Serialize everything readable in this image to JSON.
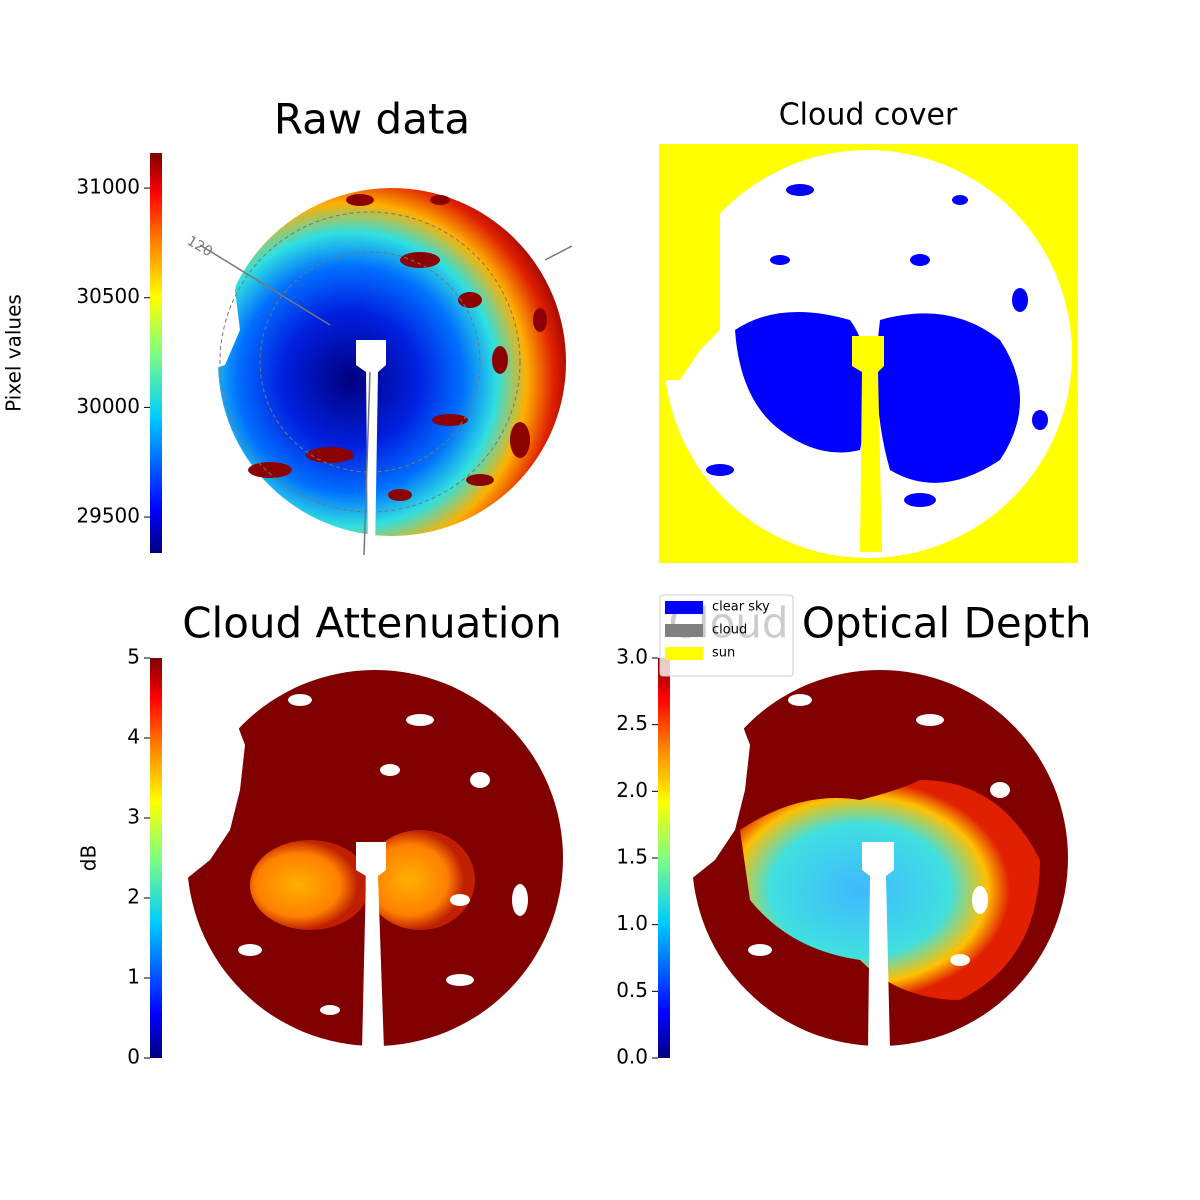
{
  "chart_data": [
    {
      "type": "heatmap",
      "title": "Raw data",
      "ylabel": "Pixel values",
      "colormap": "jet",
      "ylim": [
        29336,
        31160
      ],
      "yticks": [
        29500,
        30000,
        30500,
        31000
      ],
      "annotations": [
        "120"
      ]
    },
    {
      "type": "categorical-map",
      "title": "Cloud cover",
      "legend": "lower-left",
      "series": [
        {
          "name": "clear sky",
          "color": "#0000ff"
        },
        {
          "name": "cloud",
          "color": "#808080"
        },
        {
          "name": "sun",
          "color": "#ffff00"
        }
      ]
    },
    {
      "type": "heatmap",
      "title": "Cloud Attenuation",
      "ylabel": "dB",
      "colormap": "jet",
      "ylim": [
        0,
        5
      ],
      "yticks": [
        0,
        1,
        2,
        3,
        4,
        5
      ]
    },
    {
      "type": "heatmap",
      "title": "Cloud Optical Depth",
      "colormap": "jet",
      "ylim": [
        0,
        3
      ],
      "yticks": [
        {
          "value": 0,
          "label": "0.0"
        },
        {
          "value": 0.5,
          "label": "0.5"
        },
        {
          "value": 1,
          "label": "1.0"
        },
        {
          "value": 1.5,
          "label": "1.5"
        },
        {
          "value": 2,
          "label": "2.0"
        },
        {
          "value": 2.5,
          "label": "2.5"
        },
        {
          "value": 3,
          "label": "3.0"
        }
      ]
    }
  ]
}
